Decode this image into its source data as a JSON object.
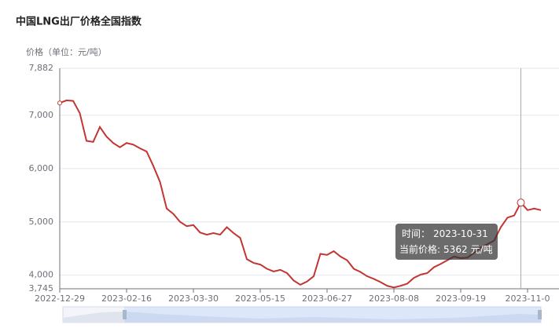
{
  "chart_data": {
    "type": "line",
    "title": "中国LNG出厂价格全国指数",
    "y_axis_label": "价格（单位：元/吨）",
    "categories": [
      "2022-12-29",
      null,
      null,
      null,
      null,
      null,
      null,
      null,
      null,
      null,
      "2023-02-16",
      null,
      null,
      null,
      null,
      null,
      null,
      null,
      null,
      null,
      "2023-03-30",
      null,
      null,
      null,
      null,
      null,
      null,
      null,
      null,
      null,
      "2023-05-15",
      null,
      null,
      null,
      null,
      null,
      null,
      null,
      null,
      null,
      "2023-06-27",
      null,
      null,
      null,
      null,
      null,
      null,
      null,
      null,
      null,
      "2023-08-08",
      null,
      null,
      null,
      null,
      null,
      null,
      null,
      null,
      null,
      "2023-09-19",
      null,
      null,
      null,
      null,
      null,
      null,
      null,
      null,
      null,
      "2023-11-0",
      null,
      null
    ],
    "series": [
      {
        "name": "当前价格",
        "color": "#c23531",
        "values": [
          7230,
          7280,
          7270,
          7040,
          6520,
          6500,
          6780,
          6600,
          6480,
          6400,
          6480,
          6450,
          6380,
          6320,
          6050,
          5750,
          5250,
          5150,
          5000,
          4920,
          4940,
          4800,
          4760,
          4790,
          4760,
          4900,
          4790,
          4700,
          4300,
          4230,
          4200,
          4120,
          4070,
          4100,
          4040,
          3900,
          3820,
          3880,
          3980,
          4400,
          4380,
          4450,
          4350,
          4280,
          4120,
          4060,
          3980,
          3930,
          3870,
          3800,
          3770,
          3800,
          3840,
          3950,
          4010,
          4040,
          4150,
          4210,
          4280,
          4350,
          4320,
          4330,
          4420,
          4520,
          4580,
          4650,
          4900,
          5080,
          5120,
          5362,
          5220,
          5250,
          5220
        ]
      }
    ],
    "ylim": [
      3745,
      7882
    ],
    "yticks": [
      {
        "value": 3745,
        "label": "3,745"
      },
      {
        "value": 4000,
        "label": "4,000"
      },
      {
        "value": 5000,
        "label": "5,000"
      },
      {
        "value": 6000,
        "label": "6,000"
      },
      {
        "value": 7000,
        "label": "7,000"
      },
      {
        "value": 7882,
        "label": "7,882"
      }
    ],
    "grid": true,
    "tooltip": {
      "time_label": "时间：",
      "date": "2023-10-31",
      "price_label": "当前价格:",
      "price": 5362,
      "unit": "元/吨"
    }
  }
}
